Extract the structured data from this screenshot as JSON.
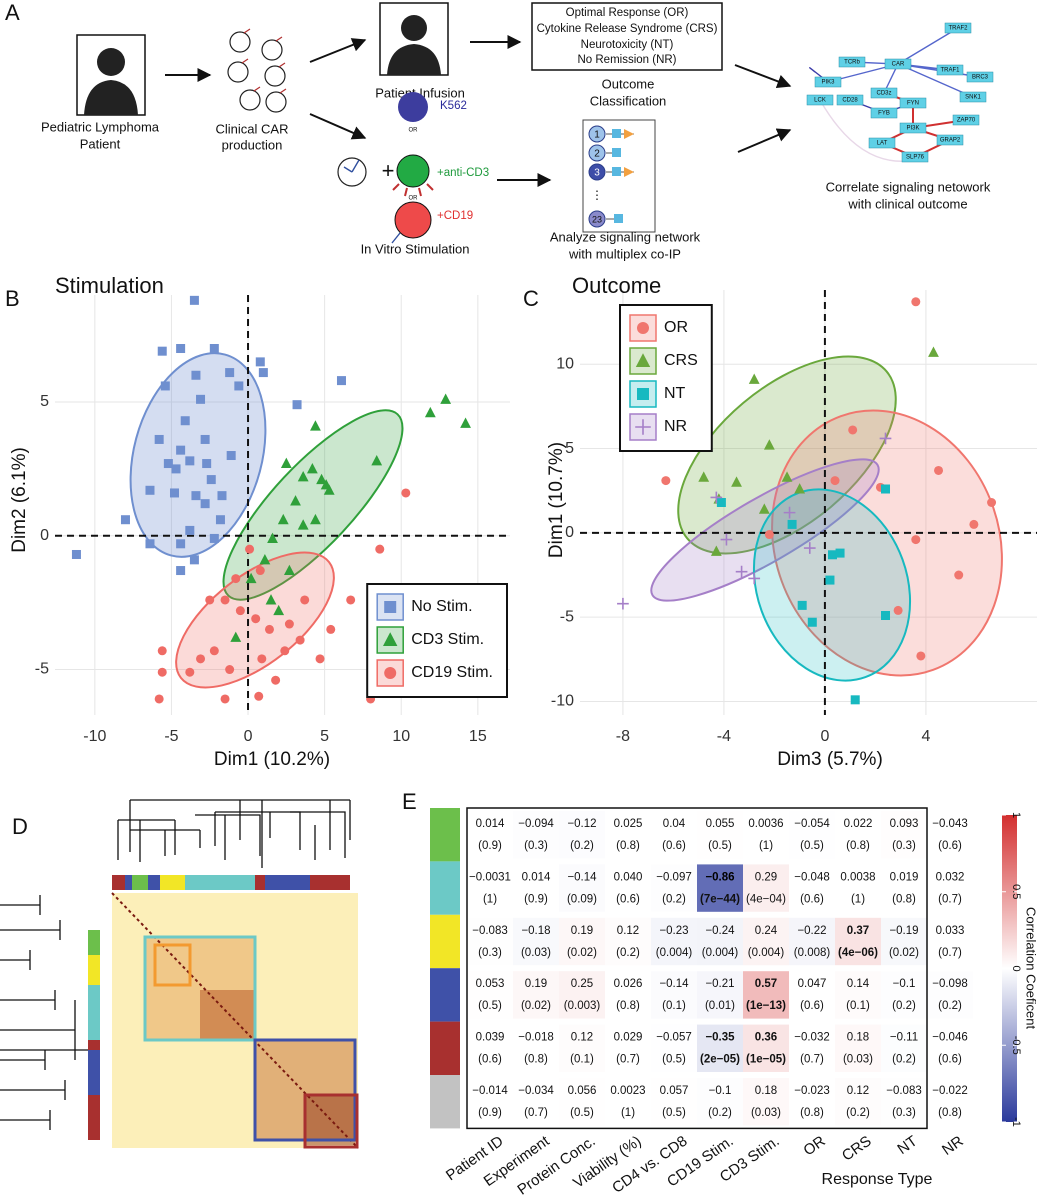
{
  "panel_a": {
    "label": "A",
    "patient": [
      "Pediatric Lymphoma",
      "Patient"
    ],
    "production": [
      "Clinical CAR",
      "production"
    ],
    "infusion": "Patient Infusion",
    "outcomes": [
      "Optimal Response (OR)",
      "Cytokine Release Syndrome (CRS)",
      "Neurotoxicity (NT)",
      "No Remission (NR)"
    ],
    "classification": [
      "Outcome",
      "Classification"
    ],
    "stimuli": [
      "K562",
      "+anti-CD3",
      "+CD19"
    ],
    "or": "OR",
    "stimulation": "In Vitro Stimulation",
    "multiplex": [
      "1",
      "2",
      "3",
      "⋮",
      "23"
    ],
    "analyze": [
      "Analyze signaling network",
      "with multiplex co-IP"
    ],
    "network": [
      "TRAF2",
      "TCRb",
      "CAR",
      "PIK3",
      "TRAF1",
      "BRC3",
      "LCK",
      "CD28",
      "CD3z",
      "SNK1",
      "FYN",
      "ZAP70",
      "FYB",
      "PI3K",
      "LAT",
      "GRAP2",
      "SLP76"
    ],
    "correlate": [
      "Correlate signaling netowork",
      "with clinical outcome"
    ]
  },
  "panel_d": {
    "label": "D"
  },
  "chart_data": [
    {
      "type": "scatter",
      "panel": "B",
      "title": "Stimulation",
      "x_label": "Dim1 (10.2%)",
      "y_label": "Dim2 (6.1%)",
      "xlim": [
        -12.6,
        17.1
      ],
      "ylim": [
        -6.7,
        9.0
      ],
      "xticks": [
        -10,
        -5,
        0,
        5,
        10,
        15
      ],
      "yticks": [
        -5,
        0,
        5
      ],
      "grid": true,
      "legend": "bottom-right",
      "series": [
        {
          "name": "No Stim.",
          "color": "#6f8fcf",
          "marker": "square",
          "x": [
            -3.5,
            -5.6,
            -4.4,
            -2.2,
            -1.2,
            -3.4,
            -5.4,
            1.0,
            0.8,
            -0.6,
            6.1,
            3.2,
            -3.1,
            -4.1,
            -5.8,
            -2.8,
            -4.4,
            -3.8,
            -5.2,
            -2.7,
            -4.7,
            -2.4,
            -6.4,
            -4.8,
            -3.4,
            -1.7,
            -2.8,
            -1.8,
            -8.0,
            -3.8,
            -6.4,
            -4.4,
            -2.2,
            -3.5,
            -4.4,
            -11.2,
            -1.1
          ],
          "y": [
            8.8,
            6.9,
            7.0,
            7.0,
            6.1,
            6.0,
            5.6,
            6.1,
            6.5,
            5.6,
            5.8,
            4.9,
            5.1,
            4.3,
            3.6,
            3.6,
            3.2,
            2.8,
            2.7,
            2.7,
            2.5,
            2.1,
            1.7,
            1.6,
            1.5,
            1.5,
            1.2,
            0.6,
            0.6,
            0.2,
            -0.3,
            -0.3,
            -0.1,
            -0.9,
            -1.3,
            -0.7,
            3.0
          ]
        },
        {
          "name": "CD3 Stim.",
          "color": "#2fa03a",
          "marker": "triangle",
          "x": [
            12.9,
            11.9,
            14.2,
            4.4,
            2.5,
            8.4,
            4.2,
            3.6,
            4.8,
            5.3,
            3.1,
            4.4,
            2.3,
            3.6,
            1.6,
            1.1,
            0.2,
            2.7,
            1.5,
            2.0,
            -0.8,
            5.1
          ],
          "y": [
            5.1,
            4.6,
            4.2,
            4.1,
            2.7,
            2.8,
            2.5,
            2.2,
            2.1,
            1.7,
            1.3,
            0.6,
            0.6,
            0.4,
            -0.1,
            -0.9,
            -1.6,
            -1.3,
            -2.4,
            -2.8,
            -3.8,
            1.9
          ]
        },
        {
          "name": "CD19 Stim.",
          "color": "#ef6b65",
          "marker": "circle",
          "x": [
            10.3,
            8.6,
            6.7,
            0.1,
            0.8,
            -0.8,
            -1.5,
            -2.5,
            -0.5,
            0.5,
            1.4,
            2.7,
            3.7,
            3.4,
            2.4,
            0.9,
            -1.2,
            -2.2,
            -3.1,
            -3.8,
            -5.6,
            -5.6,
            -1.5,
            0.7,
            1.8,
            4.7,
            -5.8,
            8.0,
            5.4
          ],
          "y": [
            1.6,
            -0.5,
            -2.4,
            -0.5,
            -1.3,
            -1.6,
            -2.4,
            -2.4,
            -2.8,
            -3.1,
            -3.5,
            -3.3,
            -2.4,
            -3.9,
            -4.3,
            -4.6,
            -5.0,
            -4.3,
            -4.6,
            -5.1,
            -4.3,
            -5.1,
            -6.1,
            -6.0,
            -5.4,
            -4.6,
            -6.1,
            -6.1,
            -3.5
          ]
        }
      ]
    },
    {
      "type": "scatter",
      "panel": "C",
      "title": "Outcome",
      "x_label": "Dim3 (5.7%)",
      "y_label": "Dim1 (10.7%)",
      "xlim": [
        -9.7,
        8.4
      ],
      "ylim": [
        -10.8,
        14.4
      ],
      "xticks": [
        -8,
        -4,
        0,
        4
      ],
      "yticks": [
        -10,
        -5,
        0,
        5,
        10
      ],
      "grid": true,
      "legend": "top-left",
      "series": [
        {
          "name": "OR",
          "color": "#f0766e",
          "marker": "circle",
          "x": [
            3.6,
            6.6,
            5.9,
            5.3,
            3.8,
            2.9,
            3.6,
            1.1,
            0.4,
            -2.2,
            -6.3,
            4.5,
            2.2
          ],
          "y": [
            13.7,
            1.8,
            0.5,
            -2.5,
            -7.3,
            -4.6,
            -0.4,
            6.1,
            3.1,
            -0.1,
            3.1,
            3.7,
            2.7
          ]
        },
        {
          "name": "CRS",
          "color": "#6aa83c",
          "marker": "triangle",
          "x": [
            4.3,
            -2.8,
            -2.2,
            -1.5,
            -1.0,
            -3.5,
            -4.8,
            -4.2,
            -4.3,
            -2.4
          ],
          "y": [
            10.7,
            9.1,
            5.2,
            3.3,
            2.6,
            3.0,
            3.3,
            2.0,
            -1.1,
            1.4
          ]
        },
        {
          "name": "NT",
          "color": "#17b9c0",
          "marker": "square",
          "x": [
            2.4,
            0.3,
            0.6,
            0.2,
            -0.9,
            -0.5,
            2.4,
            1.2,
            -4.1,
            -1.3
          ],
          "y": [
            2.6,
            -1.3,
            -1.2,
            -2.8,
            -4.3,
            -5.3,
            -4.9,
            -9.9,
            1.8,
            0.5
          ]
        },
        {
          "name": "NR",
          "color": "#a57fc8",
          "marker": "plus",
          "x": [
            2.4,
            -8.0,
            -3.9,
            -3.3,
            -2.8,
            -1.4,
            -0.6,
            -4.3
          ],
          "y": [
            5.6,
            -4.2,
            -0.4,
            -2.3,
            -2.7,
            1.2,
            -0.9,
            2.1
          ]
        }
      ]
    },
    {
      "type": "heatmap",
      "panel": "E",
      "columns": [
        "Patient ID",
        "Experiment",
        "Protein Conc.",
        "Viability (%)",
        "CD4 vs. CD8",
        "CD19 Stim.",
        "CD3 Stim.",
        "OR",
        "CRS",
        "NT",
        "NR"
      ],
      "column_group_label": "Response Type",
      "rows": [
        {
          "color": "#6cbf4b",
          "values": [
            0.014,
            -0.094,
            -0.12,
            0.025,
            0.04,
            0.055,
            0.0036,
            -0.054,
            0.022,
            0.093,
            -0.043
          ],
          "value_labels": [
            "0.014",
            "−0.094",
            "−0.12",
            "0.025",
            "0.04",
            "0.055",
            "0.0036",
            "−0.054",
            "0.022",
            "0.093",
            "−0.043"
          ],
          "p_labels": [
            "(0.9)",
            "(0.3)",
            "(0.2)",
            "(0.8)",
            "(0.6)",
            "(0.5)",
            "(1)",
            "(0.5)",
            "(0.8)",
            "(0.3)",
            "(0.6)"
          ]
        },
        {
          "color": "#6cc9c6",
          "values": [
            -0.0031,
            0.014,
            -0.14,
            0.04,
            -0.097,
            -0.86,
            0.29,
            -0.048,
            0.0038,
            0.019,
            0.032
          ],
          "value_labels": [
            "−0.0031",
            "0.014",
            "−0.14",
            "0.040",
            "−0.097",
            "−0.86",
            "0.29",
            "−0.048",
            "0.0038",
            "0.019",
            "0.032"
          ],
          "p_labels": [
            "(1)",
            "(0.9)",
            "(0.09)",
            "(0.6)",
            "(0.2)",
            "(7e−44)",
            "(4e−04)",
            "(0.6)",
            "(1)",
            "(0.8)",
            "(0.7)"
          ]
        },
        {
          "color": "#f2e626",
          "values": [
            -0.083,
            -0.18,
            0.19,
            0.12,
            -0.23,
            -0.24,
            0.24,
            -0.22,
            0.37,
            -0.19,
            0.033
          ],
          "value_labels": [
            "−0.083",
            "−0.18",
            "0.19",
            "0.12",
            "−0.23",
            "−0.24",
            "0.24",
            "−0.22",
            "0.37",
            "−0.19",
            "0.033"
          ],
          "p_labels": [
            "(0.3)",
            "(0.03)",
            "(0.02)",
            "(0.2)",
            "(0.004)",
            "(0.004)",
            "(0.004)",
            "(0.008)",
            "(4e−06)",
            "(0.02)",
            "(0.7)"
          ]
        },
        {
          "color": "#3f51a8",
          "values": [
            0.053,
            0.19,
            0.25,
            0.026,
            -0.14,
            -0.21,
            0.57,
            0.047,
            0.14,
            -0.1,
            -0.098
          ],
          "value_labels": [
            "0.053",
            "0.19",
            "0.25",
            "0.026",
            "−0.14",
            "−0.21",
            "0.57",
            "0.047",
            "0.14",
            "−0.1",
            "−0.098"
          ],
          "p_labels": [
            "(0.5)",
            "(0.02)",
            "(0.003)",
            "(0.8)",
            "(0.1)",
            "(0.01)",
            "(1e−13)",
            "(0.6)",
            "(0.1)",
            "(0.2)",
            "(0.2)"
          ]
        },
        {
          "color": "#a8302f",
          "values": [
            0.039,
            -0.018,
            0.12,
            0.029,
            -0.057,
            -0.35,
            0.36,
            -0.032,
            0.18,
            -0.11,
            -0.046
          ],
          "value_labels": [
            "0.039",
            "−0.018",
            "0.12",
            "0.029",
            "−0.057",
            "−0.35",
            "0.36",
            "−0.032",
            "0.18",
            "−0.11",
            "−0.046"
          ],
          "p_labels": [
            "(0.6)",
            "(0.8)",
            "(0.1)",
            "(0.7)",
            "(0.5)",
            "(2e−05)",
            "(1e−05)",
            "(0.7)",
            "(0.03)",
            "(0.2)",
            "(0.6)"
          ]
        },
        {
          "color": "#c2c2c2",
          "values": [
            -0.014,
            -0.034,
            0.056,
            0.0023,
            0.057,
            -0.1,
            0.18,
            -0.023,
            0.12,
            -0.083,
            -0.022
          ],
          "value_labels": [
            "−0.014",
            "−0.034",
            "0.056",
            "0.0023",
            "0.057",
            "−0.1",
            "0.18",
            "−0.023",
            "0.12",
            "−0.083",
            "−0.022"
          ],
          "p_labels": [
            "(0.9)",
            "(0.7)",
            "(0.5)",
            "(1)",
            "(0.5)",
            "(0.2)",
            "(0.03)",
            "(0.8)",
            "(0.2)",
            "(0.3)",
            "(0.8)"
          ]
        }
      ],
      "colorbar": {
        "label": "Correlation Coeficent",
        "lim": [
          -1,
          1
        ],
        "ticks": [
          1,
          0.5,
          0,
          -0.5,
          -1
        ],
        "high": "#d32f2f",
        "low": "#2b3a9c"
      }
    }
  ]
}
